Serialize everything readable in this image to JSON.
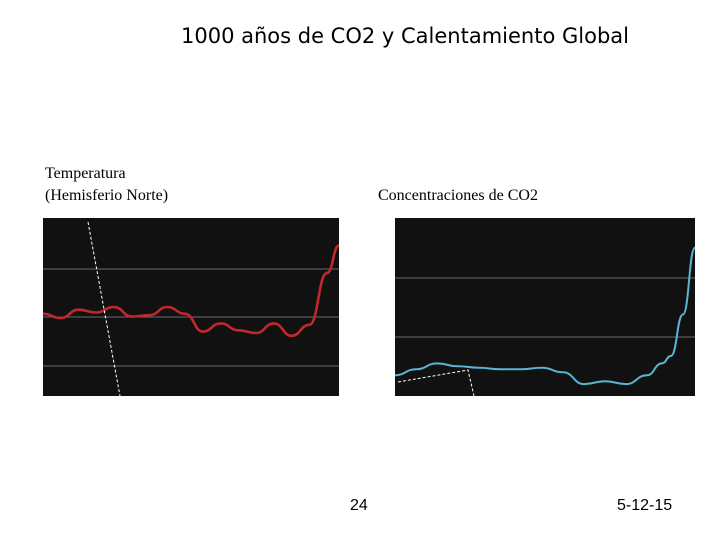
{
  "title": "1000 años de CO2 y Calentamiento Global",
  "page_number": "24",
  "date": "5-12-15",
  "colors": {
    "temperature_line": "#c0282e",
    "co2_line": "#5ab4d2",
    "plot_bg": "#111111"
  },
  "chart_data": [
    {
      "type": "line",
      "title": "Temperatura\n(Hemisferio Norte)",
      "series": [
        {
          "name": "",
          "values": [
            0.0,
            -0.06,
            0.06,
            0.02,
            0.1,
            -0.04,
            -0.02,
            0.1,
            0.0,
            -0.26,
            -0.14,
            -0.24,
            -0.28,
            -0.14,
            -0.32,
            -0.16,
            0.6,
            1.0
          ]
        }
      ],
      "x": [
        0,
        6,
        12,
        18,
        24,
        30,
        36,
        42,
        48,
        54,
        60,
        66,
        72,
        78,
        84,
        90,
        96,
        100
      ],
      "ylim": [
        -1.2,
        1.4
      ],
      "xlim": [
        0,
        100
      ],
      "grid": true
    },
    {
      "type": "line",
      "title": "Concentraciones de CO2",
      "series": [
        {
          "name": "",
          "values": [
            0.14,
            0.18,
            0.22,
            0.2,
            0.19,
            0.18,
            0.18,
            0.19,
            0.16,
            0.08,
            0.1,
            0.08,
            0.14,
            0.22,
            0.27,
            0.55,
            1.0
          ]
        }
      ],
      "x": [
        0,
        7,
        14,
        21,
        28,
        35,
        42,
        49,
        56,
        63,
        70,
        77,
        84,
        89,
        92,
        96,
        100
      ],
      "ylim": [
        0,
        1.2
      ],
      "xlim": [
        0,
        100
      ],
      "grid": true
    }
  ]
}
